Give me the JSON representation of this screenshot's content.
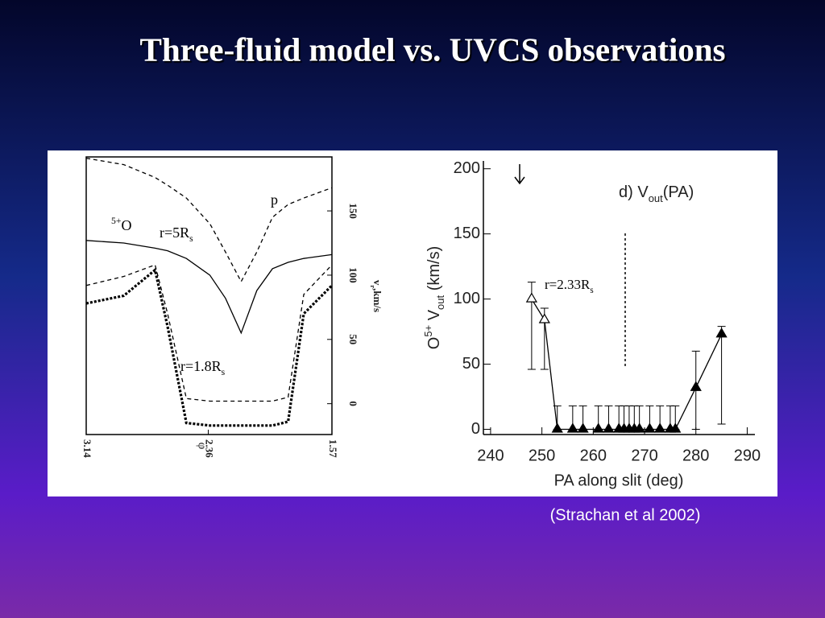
{
  "header": {
    "title": "Three-fluid model vs. UVCS observations"
  },
  "citation": "(Strachan et al 2002)",
  "chart_data": [
    {
      "type": "line",
      "x": [
        3.14,
        2.9,
        2.7,
        2.62,
        2.5,
        2.35,
        2.25,
        2.15,
        2.05,
        1.95,
        1.85,
        1.75,
        1.57
      ],
      "series": [
        {
          "color": "#000000",
          "style": "dashed",
          "values": [
            191,
            186,
            176,
            170,
            160,
            140,
            118,
            95,
            118,
            145,
            155,
            160,
            168
          ]
        },
        {
          "color": "#000000",
          "style": "solid",
          "values": [
            127,
            125,
            121,
            119,
            113,
            100,
            82,
            55,
            88,
            105,
            110,
            113,
            116
          ]
        },
        {
          "color": "#000000",
          "style": "dashed",
          "values": [
            92,
            99,
            108,
            70,
            4,
            2,
            2,
            2,
            2,
            2,
            5,
            85,
            108
          ]
        },
        {
          "color": "#000000",
          "style": "dotted",
          "values": [
            78,
            84,
            104,
            60,
            -15,
            -17,
            -17,
            -17,
            -17,
            -17,
            -14,
            70,
            92
          ]
        }
      ],
      "xlim": [
        3.14,
        1.57
      ],
      "ylim": [
        -24,
        192
      ],
      "xticks": [
        3.14,
        2.36,
        1.57
      ],
      "yticks": [
        0,
        50,
        100,
        150
      ],
      "xlabel": "φ",
      "ylabel": {
        "main": "v",
        "sub": "r",
        "rest": ",km/s"
      },
      "annotations": [
        {
          "text": "p"
        },
        {
          "text": "O",
          "sup": "5+"
        },
        {
          "text": "r=5R",
          "sub": "s"
        },
        {
          "text": "r=1.8R",
          "sub": "s"
        }
      ]
    },
    {
      "type": "scatter",
      "title": {
        "main": "d) V",
        "sub": "out",
        "rest": "(PA)"
      },
      "xlabel": "PA along slit (deg)",
      "ylabel": {
        "pre": "O",
        "sup": "5+",
        "main": " V",
        "sub": "out",
        "rest": " (km/s)"
      },
      "annotation": {
        "text": "r=2.33R",
        "sub": "s"
      },
      "xlim": [
        238.6,
        291.5
      ],
      "ylim": [
        -4,
        206
      ],
      "xticks": [
        240,
        250,
        260,
        270,
        280,
        290
      ],
      "yticks": [
        0,
        50,
        100,
        150,
        200
      ],
      "connect": true,
      "series": [
        {
          "marker": "open-triangle",
          "color": "#000000",
          "x": [
            248,
            250.5
          ],
          "values": [
            100,
            84
          ],
          "err_low": [
            54,
            38
          ],
          "err_high": [
            13,
            9
          ]
        },
        {
          "marker": "filled-triangle",
          "color": "#000000",
          "x": [
            253,
            256,
            258,
            261,
            263,
            265,
            266,
            267,
            268,
            269,
            271,
            273,
            275,
            276
          ],
          "values": [
            0,
            0,
            0,
            0,
            0,
            0,
            0,
            0,
            0,
            0,
            0,
            0,
            0,
            0
          ],
          "err_low": [
            0,
            0,
            0,
            0,
            0,
            0,
            0,
            0,
            0,
            0,
            0,
            0,
            0,
            0
          ],
          "err_high": [
            18,
            18,
            18,
            18,
            18,
            18,
            18,
            18,
            18,
            18,
            18,
            18,
            18,
            18
          ]
        },
        {
          "marker": "filled-triangle",
          "color": "#000000",
          "x": [
            280,
            285
          ],
          "values": [
            32,
            73
          ],
          "err_low": [
            32,
            69
          ],
          "err_high": [
            28,
            6
          ]
        }
      ]
    }
  ]
}
